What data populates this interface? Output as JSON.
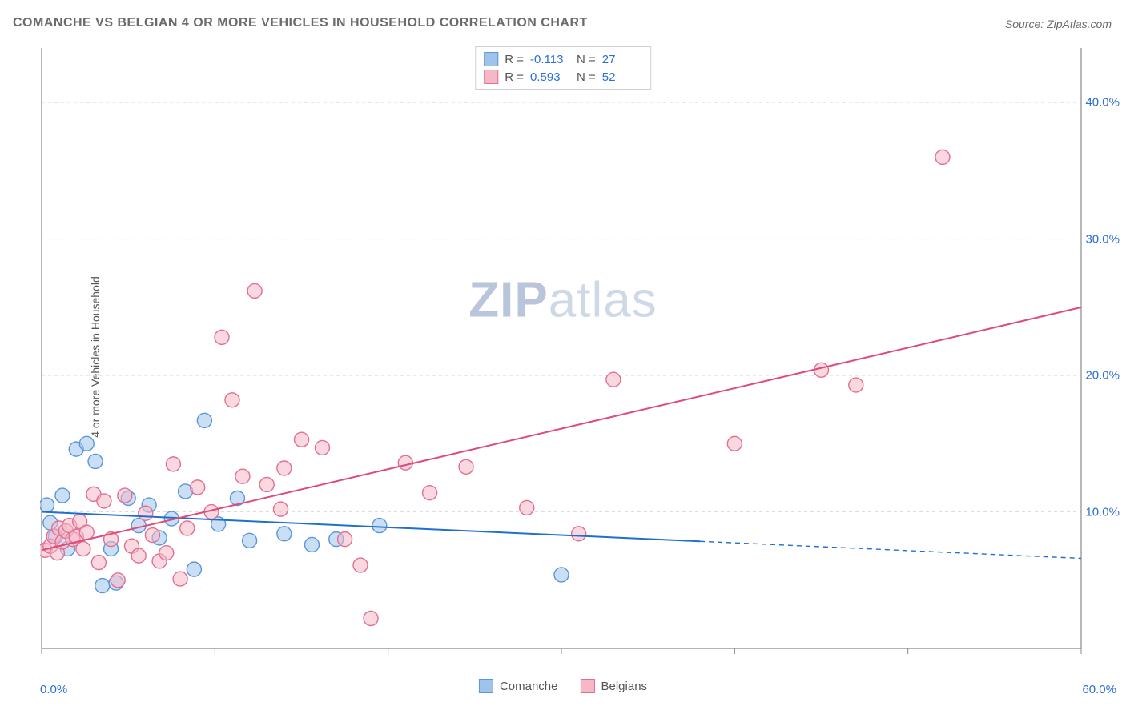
{
  "title": "COMANCHE VS BELGIAN 4 OR MORE VEHICLES IN HOUSEHOLD CORRELATION CHART",
  "source": "Source: ZipAtlas.com",
  "ylabel": "4 or more Vehicles in Household",
  "watermark": {
    "bold": "ZIP",
    "rest": "atlas"
  },
  "chart": {
    "type": "scatter",
    "background_color": "#ffffff",
    "grid_color": "#dcdcdc",
    "axis_color": "#888888",
    "tick_color": "#888888",
    "xlim": [
      0,
      60
    ],
    "ylim": [
      0,
      44
    ],
    "x_ticks_minor": [
      0,
      10,
      20,
      30,
      40,
      50,
      60
    ],
    "y_gridlines": [
      10,
      20,
      30,
      40
    ],
    "x_tick_labels": {
      "left": "0.0%",
      "right": "60.0%"
    },
    "y_tick_labels": [
      {
        "value": 10,
        "label": "10.0%"
      },
      {
        "value": 20,
        "label": "20.0%"
      },
      {
        "value": 30,
        "label": "30.0%"
      },
      {
        "value": 40,
        "label": "40.0%"
      }
    ],
    "label_color": "#2a6fd6",
    "label_fontsize": 15,
    "marker_radius": 9,
    "marker_opacity": 0.55,
    "line_width": 2,
    "series": [
      {
        "name": "Comanche",
        "color_fill": "#9fc4eb",
        "color_stroke": "#5a96db",
        "trend_color": "#1f6fd0",
        "r": "-0.113",
        "n": "27",
        "points": [
          [
            0.3,
            10.5
          ],
          [
            0.5,
            9.2
          ],
          [
            0.8,
            8.2
          ],
          [
            1.2,
            11.2
          ],
          [
            1.5,
            7.3
          ],
          [
            2.0,
            14.6
          ],
          [
            2.6,
            15.0
          ],
          [
            3.1,
            13.7
          ],
          [
            3.5,
            4.6
          ],
          [
            4.0,
            7.3
          ],
          [
            4.3,
            4.8
          ],
          [
            5.0,
            11.0
          ],
          [
            5.6,
            9.0
          ],
          [
            6.2,
            10.5
          ],
          [
            6.8,
            8.1
          ],
          [
            7.5,
            9.5
          ],
          [
            8.3,
            11.5
          ],
          [
            8.8,
            5.8
          ],
          [
            9.4,
            16.7
          ],
          [
            10.2,
            9.1
          ],
          [
            11.3,
            11.0
          ],
          [
            12.0,
            7.9
          ],
          [
            14.0,
            8.4
          ],
          [
            15.6,
            7.6
          ],
          [
            17.0,
            8.0
          ],
          [
            19.5,
            9.0
          ],
          [
            30.0,
            5.4
          ]
        ],
        "trend": {
          "x1": 0,
          "y1": 10.0,
          "x2": 60,
          "y2": 6.6,
          "solid_until_x": 38
        }
      },
      {
        "name": "Belgians",
        "color_fill": "#f4b8c6",
        "color_stroke": "#e26f93",
        "trend_color": "#e04a7a",
        "r": "0.593",
        "n": "52",
        "points": [
          [
            0.2,
            7.2
          ],
          [
            0.5,
            7.5
          ],
          [
            0.7,
            8.2
          ],
          [
            0.9,
            7.0
          ],
          [
            1.0,
            8.8
          ],
          [
            1.2,
            7.8
          ],
          [
            1.4,
            8.6
          ],
          [
            1.6,
            9.0
          ],
          [
            1.8,
            8.0
          ],
          [
            2.0,
            8.2
          ],
          [
            2.2,
            9.3
          ],
          [
            2.4,
            7.3
          ],
          [
            2.6,
            8.5
          ],
          [
            3.0,
            11.3
          ],
          [
            3.3,
            6.3
          ],
          [
            3.6,
            10.8
          ],
          [
            4.0,
            8.0
          ],
          [
            4.4,
            5.0
          ],
          [
            4.8,
            11.2
          ],
          [
            5.2,
            7.5
          ],
          [
            5.6,
            6.8
          ],
          [
            6.0,
            9.9
          ],
          [
            6.4,
            8.3
          ],
          [
            6.8,
            6.4
          ],
          [
            7.2,
            7.0
          ],
          [
            7.6,
            13.5
          ],
          [
            8.0,
            5.1
          ],
          [
            8.4,
            8.8
          ],
          [
            9.0,
            11.8
          ],
          [
            9.8,
            10.0
          ],
          [
            10.4,
            22.8
          ],
          [
            11.0,
            18.2
          ],
          [
            11.6,
            12.6
          ],
          [
            12.3,
            26.2
          ],
          [
            13.0,
            12.0
          ],
          [
            13.8,
            10.2
          ],
          [
            14.0,
            13.2
          ],
          [
            15.0,
            15.3
          ],
          [
            16.2,
            14.7
          ],
          [
            17.5,
            8.0
          ],
          [
            18.4,
            6.1
          ],
          [
            19.0,
            2.2
          ],
          [
            21.0,
            13.6
          ],
          [
            22.4,
            11.4
          ],
          [
            24.5,
            13.3
          ],
          [
            28.0,
            10.3
          ],
          [
            31.0,
            8.4
          ],
          [
            33.0,
            19.7
          ],
          [
            40.0,
            15.0
          ],
          [
            45.0,
            20.4
          ],
          [
            47.0,
            19.3
          ],
          [
            52.0,
            36.0
          ]
        ],
        "trend": {
          "x1": 0,
          "y1": 7.2,
          "x2": 60,
          "y2": 25.0,
          "solid_until_x": 60
        }
      }
    ]
  },
  "legend_top": [
    {
      "swatch_fill": "#9fc4eb",
      "swatch_stroke": "#5a96db",
      "r_label": "R =",
      "r": "-0.113",
      "n_label": "N =",
      "n": "27"
    },
    {
      "swatch_fill": "#f4b8c6",
      "swatch_stroke": "#e26f93",
      "r_label": "R =",
      "r": "0.593",
      "n_label": "N =",
      "n": "52"
    }
  ],
  "legend_bottom": [
    {
      "swatch_fill": "#9fc4eb",
      "swatch_stroke": "#5a96db",
      "label": "Comanche"
    },
    {
      "swatch_fill": "#f4b8c6",
      "swatch_stroke": "#e26f93",
      "label": "Belgians"
    }
  ]
}
